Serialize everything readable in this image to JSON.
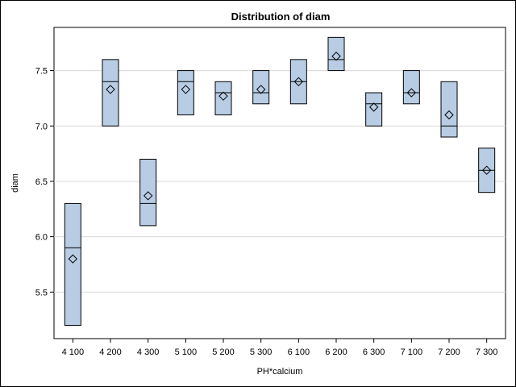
{
  "chart_data": {
    "type": "box",
    "title": "Distribution of diam",
    "xlabel": "PH*calcium",
    "ylabel": "diam",
    "categories": [
      "4 100",
      "4 200",
      "4 300",
      "5 100",
      "5 200",
      "5 300",
      "6 100",
      "6 200",
      "6 300",
      "7 100",
      "7 200",
      "7 300"
    ],
    "boxes": [
      {
        "q1": 5.2,
        "median": 5.9,
        "q3": 6.3,
        "mean": 5.8
      },
      {
        "q1": 7.0,
        "median": 7.4,
        "q3": 7.6,
        "mean": 7.33
      },
      {
        "q1": 6.1,
        "median": 6.3,
        "q3": 6.7,
        "mean": 6.37
      },
      {
        "q1": 7.1,
        "median": 7.4,
        "q3": 7.5,
        "mean": 7.33
      },
      {
        "q1": 7.1,
        "median": 7.3,
        "q3": 7.4,
        "mean": 7.27
      },
      {
        "q1": 7.2,
        "median": 7.3,
        "q3": 7.5,
        "mean": 7.33
      },
      {
        "q1": 7.2,
        "median": 7.4,
        "q3": 7.6,
        "mean": 7.4
      },
      {
        "q1": 7.5,
        "median": 7.6,
        "q3": 7.8,
        "mean": 7.63
      },
      {
        "q1": 7.0,
        "median": 7.2,
        "q3": 7.3,
        "mean": 7.17
      },
      {
        "q1": 7.2,
        "median": 7.3,
        "q3": 7.5,
        "mean": 7.3
      },
      {
        "q1": 6.9,
        "median": 7.0,
        "q3": 7.4,
        "mean": 7.1
      },
      {
        "q1": 6.4,
        "median": 6.6,
        "q3": 6.8,
        "mean": 6.6
      }
    ],
    "yticks": [
      "5.5",
      "6.0",
      "6.5",
      "7.0",
      "7.5"
    ],
    "ylim": [
      5.08,
      7.89
    ],
    "grid": true,
    "colors": {
      "box_fill": "#b8cce4",
      "box_stroke": "#000000",
      "grid": "#d9d9d9"
    }
  }
}
